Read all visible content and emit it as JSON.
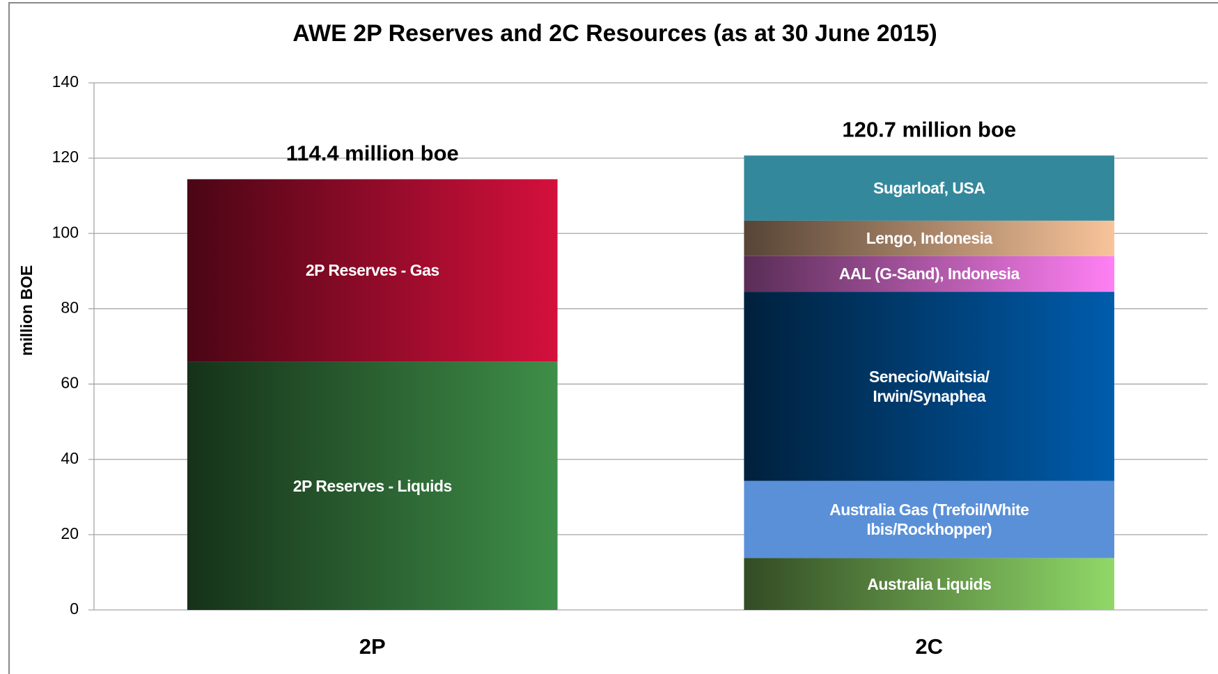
{
  "chart_data": {
    "type": "stacked_bar",
    "title": "AWE 2P Reserves and 2C Resources (as at 30 June 2015)",
    "y_label": "million  BOE",
    "categories": [
      "2P",
      "2C"
    ],
    "annotations": [
      "114.4 million boe",
      "120.7 million boe"
    ],
    "ylim": [
      0,
      140
    ],
    "yticks": [
      0,
      20,
      40,
      60,
      80,
      100,
      120,
      140
    ],
    "grid": true,
    "series": [
      {
        "name": "2P Reserves - Liquids",
        "color": "#3e8e48",
        "gradient": true,
        "values": [
          66,
          null
        ]
      },
      {
        "name": "2P Reserves - Gas",
        "color": "#d4103c",
        "gradient": true,
        "values": [
          48.4,
          null
        ]
      },
      {
        "name": "Australia Liquids",
        "color": "#90d868",
        "gradient": true,
        "values": [
          null,
          13.8
        ]
      },
      {
        "name": "Australia Gas (Trefoil/White\nIbis/Rockhopper)",
        "color": "#5a90d8",
        "gradient": false,
        "values": [
          null,
          20.5
        ]
      },
      {
        "name": "Senecio/Waitsia/\nIrwin/Synaphea",
        "color": "#005cac",
        "gradient": true,
        "values": [
          null,
          50.2
        ]
      },
      {
        "name": "AAL (G-Sand), Indonesia",
        "color": "#ff80f4",
        "gradient": true,
        "values": [
          null,
          9.5
        ]
      },
      {
        "name": "Lengo, Indonesia",
        "color": "#f8c49a",
        "gradient": true,
        "values": [
          null,
          9.4
        ]
      },
      {
        "name": "Sugarloaf, USA",
        "color": "#34889c",
        "gradient": false,
        "values": [
          null,
          17.3
        ]
      }
    ]
  }
}
